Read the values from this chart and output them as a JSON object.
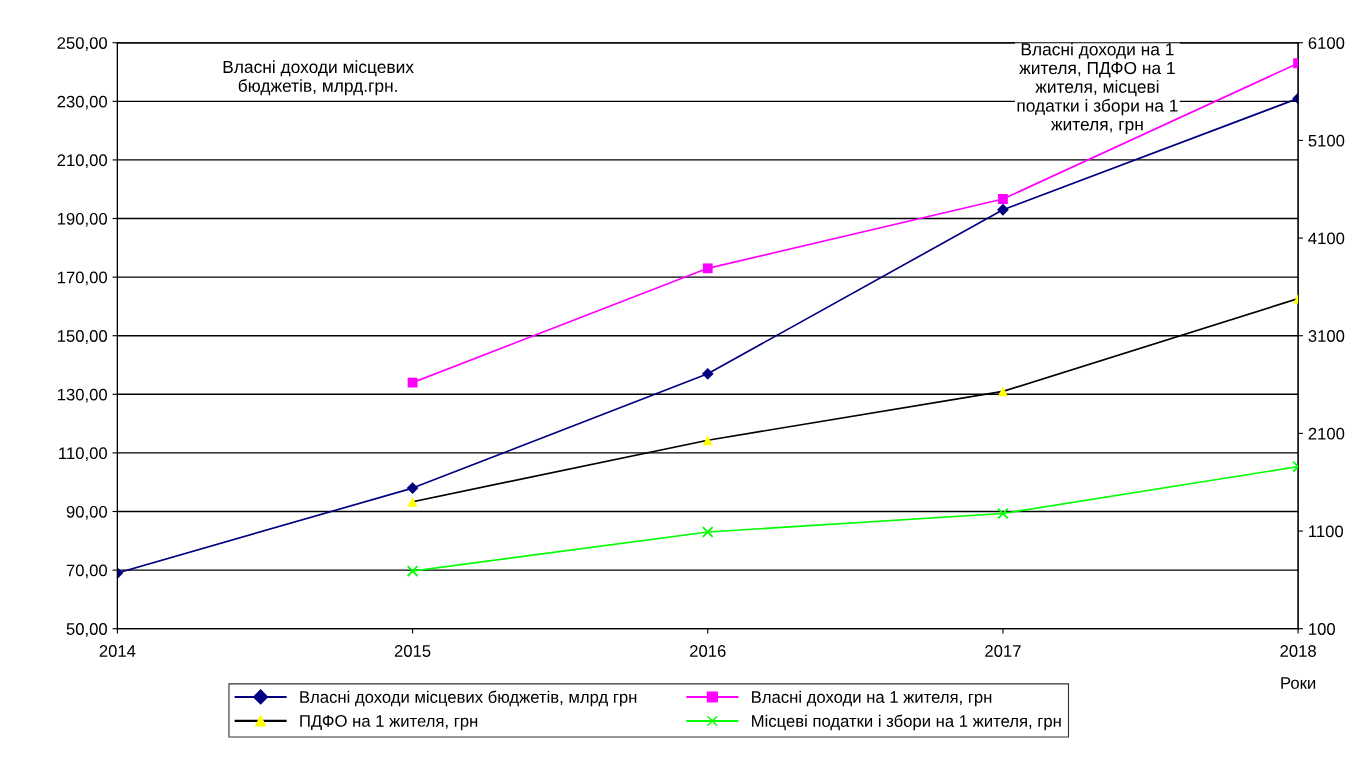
{
  "chart_data": {
    "type": "line",
    "xlabel": "Роки",
    "x": [
      2014,
      2015,
      2016,
      2017,
      2018
    ],
    "xlim": [
      2014,
      2018
    ],
    "xticks": [
      2014,
      2015,
      2016,
      2017,
      2018
    ],
    "ylim": [
      50,
      250
    ],
    "yticks": [
      {
        "value": 50,
        "label": "50,00"
      },
      {
        "value": 70,
        "label": "70,00"
      },
      {
        "value": 90,
        "label": "90,00"
      },
      {
        "value": 110,
        "label": "110,00"
      },
      {
        "value": 130,
        "label": "130,00"
      },
      {
        "value": 150,
        "label": "150,00"
      },
      {
        "value": 170,
        "label": "170,00"
      },
      {
        "value": 190,
        "label": "190,00"
      },
      {
        "value": 210,
        "label": "210,00"
      },
      {
        "value": 230,
        "label": "230,00"
      },
      {
        "value": 250,
        "label": "250,00"
      }
    ],
    "y2lim": [
      100,
      6100
    ],
    "y2ticks": [
      100,
      1100,
      2100,
      3100,
      4100,
      5100,
      6100
    ],
    "grid": "y",
    "legend": "bottom",
    "line_style": "solid",
    "annotations": [
      "Власні доходи місцевих бюджетів, млрд.грн.",
      "Власні доходи на 1 жителя, ПДФО на 1 жителя, місцеві податки і збори на 1 жителя, грн"
    ],
    "series": [
      {
        "name": "Власні доходи місцевих бюджетів, млрд грн",
        "color": "#000080",
        "marker": "diamond",
        "values": [
          69,
          98,
          137,
          193,
          231
        ]
      },
      {
        "name": "Власні доходи на 1 жителя, грн",
        "color": "#ff00ff",
        "marker": "square",
        "axis": "y2",
        "values": [
          null,
          2620,
          3790,
          4500,
          5890
        ]
      },
      {
        "name": "ПДФО на 1 жителя, грн",
        "color": "#000000",
        "colors": [
          "#ffff00",
          "#ffff00",
          "#ffff00",
          "#ffff00",
          "#ffff00"
        ],
        "marker": "triangle",
        "axis": "y2",
        "values": [
          null,
          1400,
          2030,
          2530,
          3480
        ]
      },
      {
        "name": "Місцеві податки і збори на 1 жителя, грн",
        "color": "#00ff00",
        "marker": "cross",
        "axis": "y2",
        "values": [
          null,
          690,
          1090,
          1280,
          1760
        ]
      }
    ]
  }
}
